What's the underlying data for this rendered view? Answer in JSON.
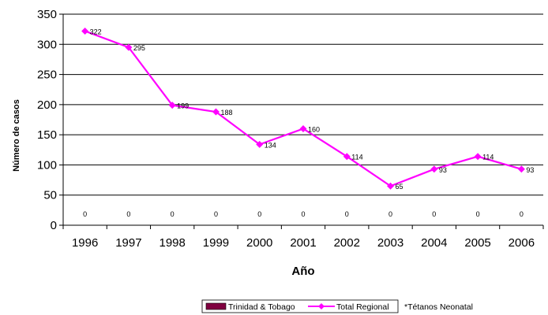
{
  "chart_data": {
    "type": "line",
    "xlabel": "Año",
    "ylabel": "Número de casos",
    "ylim": [
      0,
      350
    ],
    "ytick_step": 50,
    "yticks": [
      "0",
      "50",
      "100",
      "150",
      "200",
      "250",
      "300",
      "350"
    ],
    "categories": [
      "1996",
      "1997",
      "1998",
      "1999",
      "2000",
      "2001",
      "2002",
      "2003",
      "2004",
      "2005",
      "2006"
    ],
    "grid": true,
    "legend_position": "bottom",
    "series": [
      {
        "name": "Trinidad & Tobago",
        "values": [
          0,
          0,
          0,
          0,
          0,
          0,
          0,
          0,
          0,
          0,
          0
        ],
        "labels": [
          "0",
          "0",
          "0",
          "0",
          "0",
          "0",
          "0",
          "0",
          "0",
          "0",
          "0"
        ],
        "color": "#800040"
      },
      {
        "name": "Total Regional",
        "values": [
          322,
          295,
          199,
          188,
          134,
          160,
          114,
          65,
          93,
          114,
          93
        ],
        "labels": [
          "322",
          "295",
          "199",
          "188",
          "134",
          "160",
          "114",
          "65",
          "93",
          "114",
          "93"
        ],
        "color": "#ff00ff"
      }
    ],
    "note": "*Tétanos Neonatal"
  }
}
